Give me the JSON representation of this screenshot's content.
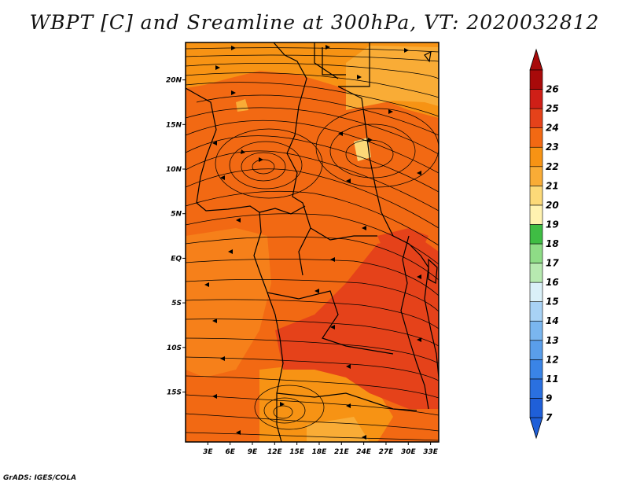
{
  "title": "WBPT [C] and Sreamline at 300hPa, VT: 2020032812",
  "footer": "GrADS: IGES/COLA",
  "lat_labels": [
    {
      "text": "20N",
      "lat": 20
    },
    {
      "text": "15N",
      "lat": 15
    },
    {
      "text": "10N",
      "lat": 10
    },
    {
      "text": "5N",
      "lat": 5
    },
    {
      "text": "EQ",
      "lat": 0
    },
    {
      "text": "5S",
      "lat": -5
    },
    {
      "text": "10S",
      "lat": -10
    },
    {
      "text": "15S",
      "lat": -15
    }
  ],
  "lon_labels": [
    {
      "text": "3E",
      "lon": 3
    },
    {
      "text": "6E",
      "lon": 6
    },
    {
      "text": "9E",
      "lon": 9
    },
    {
      "text": "12E",
      "lon": 12
    },
    {
      "text": "15E",
      "lon": 15
    },
    {
      "text": "18E",
      "lon": 18
    },
    {
      "text": "21E",
      "lon": 21
    },
    {
      "text": "24E",
      "lon": 24
    },
    {
      "text": "27E",
      "lon": 27
    },
    {
      "text": "30E",
      "lon": 30
    },
    {
      "text": "33E",
      "lon": 33
    }
  ],
  "colorbar": [
    {
      "label": "7",
      "color": "#1f5fd8"
    },
    {
      "label": "9",
      "color": "#2a70e0"
    },
    {
      "label": "11",
      "color": "#3a84e6"
    },
    {
      "label": "12",
      "color": "#5a9eea"
    },
    {
      "label": "13",
      "color": "#7ab6ef"
    },
    {
      "label": "14",
      "color": "#a8d2f5"
    },
    {
      "label": "15",
      "color": "#daf0f8"
    },
    {
      "label": "16",
      "color": "#b7e9b0"
    },
    {
      "label": "17",
      "color": "#8edc86"
    },
    {
      "label": "18",
      "color": "#3fbd44"
    },
    {
      "label": "19",
      "color": "#fff2b0"
    },
    {
      "label": "20",
      "color": "#fcd978"
    },
    {
      "label": "21",
      "color": "#f9ac36"
    },
    {
      "label": "22",
      "color": "#f79314"
    },
    {
      "label": "23",
      "color": "#f26913"
    },
    {
      "label": "24",
      "color": "#e5421a"
    },
    {
      "label": "25",
      "color": "#cf1f17"
    },
    {
      "label": "26",
      "color": "#a80a0a"
    }
  ],
  "colorbar_ends": {
    "low": "#1f5fd8",
    "high": "#a80a0a"
  }
}
